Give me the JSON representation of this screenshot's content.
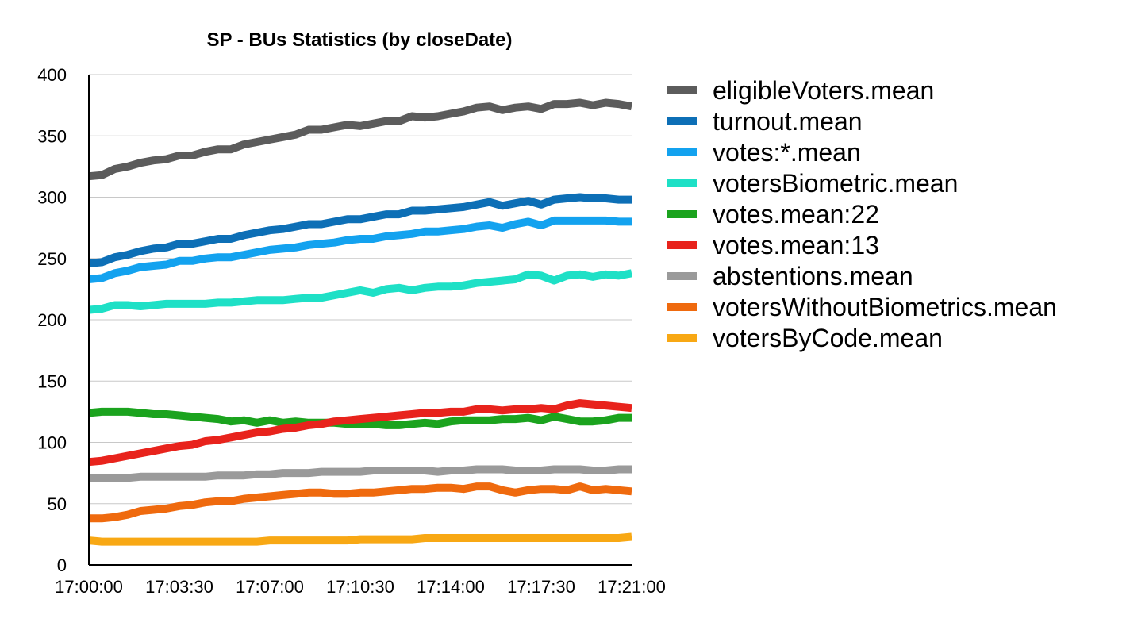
{
  "chart_data": {
    "type": "line",
    "title": "SP - BUs Statistics (by closeDate)",
    "xlabel": "",
    "ylabel": "",
    "ylim": [
      0,
      400
    ],
    "yticks": [
      "400",
      "350",
      "300",
      "250",
      "200",
      "150",
      "100",
      "50",
      "0"
    ],
    "xticks": [
      "17:00:00",
      "17:03:30",
      "17:07:00",
      "17:10:30",
      "17:14:00",
      "17:17:30",
      "17:21:00"
    ],
    "x_start": "17:00:00",
    "x_end": "17:21:00",
    "grid": true,
    "legend_position": "right",
    "series": [
      {
        "name": "eligibleVoters.mean",
        "color": "#5c5c5c",
        "values": [
          317,
          318,
          323,
          325,
          328,
          330,
          331,
          334,
          334,
          337,
          339,
          339,
          343,
          345,
          347,
          349,
          351,
          355,
          355,
          357,
          359,
          358,
          360,
          362,
          362,
          366,
          365,
          366,
          368,
          370,
          373,
          374,
          371,
          373,
          374,
          372,
          376,
          376,
          377,
          375,
          377,
          376,
          374
        ]
      },
      {
        "name": "turnout.mean",
        "color": "#0d6fb6",
        "values": [
          246,
          247,
          251,
          253,
          256,
          258,
          259,
          262,
          262,
          264,
          266,
          266,
          269,
          271,
          273,
          274,
          276,
          278,
          278,
          280,
          282,
          282,
          284,
          286,
          286,
          289,
          289,
          290,
          291,
          292,
          294,
          296,
          293,
          295,
          297,
          294,
          298,
          299,
          300,
          299,
          299,
          298,
          298
        ]
      },
      {
        "name": "votes:*.mean",
        "color": "#13a2ef",
        "values": [
          233,
          234,
          238,
          240,
          243,
          244,
          245,
          248,
          248,
          250,
          251,
          251,
          253,
          255,
          257,
          258,
          259,
          261,
          262,
          263,
          265,
          266,
          266,
          268,
          269,
          270,
          272,
          272,
          273,
          274,
          276,
          277,
          275,
          278,
          280,
          277,
          281,
          281,
          281,
          281,
          281,
          280,
          280
        ]
      },
      {
        "name": "votersBiometric.mean",
        "color": "#1ee0c6",
        "values": [
          208,
          209,
          212,
          212,
          211,
          212,
          213,
          213,
          213,
          213,
          214,
          214,
          215,
          216,
          216,
          216,
          217,
          218,
          218,
          220,
          222,
          224,
          222,
          225,
          226,
          224,
          226,
          227,
          227,
          228,
          230,
          231,
          232,
          233,
          237,
          236,
          232,
          236,
          237,
          235,
          237,
          236,
          238
        ]
      },
      {
        "name": "votes.mean:22",
        "color": "#1ba31e",
        "values": [
          124,
          125,
          125,
          125,
          124,
          123,
          123,
          122,
          121,
          120,
          119,
          117,
          118,
          116,
          118,
          116,
          117,
          116,
          116,
          116,
          115,
          115,
          115,
          114,
          114,
          115,
          116,
          115,
          117,
          118,
          118,
          118,
          119,
          119,
          120,
          118,
          121,
          119,
          117,
          117,
          118,
          120,
          120
        ]
      },
      {
        "name": "votes.mean:13",
        "color": "#e8231c",
        "values": [
          84,
          85,
          87,
          89,
          91,
          93,
          95,
          97,
          98,
          101,
          102,
          104,
          106,
          108,
          109,
          111,
          112,
          114,
          115,
          117,
          118,
          119,
          120,
          121,
          122,
          123,
          124,
          124,
          125,
          125,
          127,
          127,
          126,
          127,
          127,
          128,
          127,
          130,
          132,
          131,
          130,
          129,
          128
        ]
      },
      {
        "name": "abstentions.mean",
        "color": "#9a9a9a",
        "values": [
          71,
          71,
          71,
          71,
          72,
          72,
          72,
          72,
          72,
          72,
          73,
          73,
          73,
          74,
          74,
          75,
          75,
          75,
          76,
          76,
          76,
          76,
          77,
          77,
          77,
          77,
          77,
          76,
          77,
          77,
          78,
          78,
          78,
          77,
          77,
          77,
          78,
          78,
          78,
          77,
          77,
          78,
          78
        ]
      },
      {
        "name": "votersWithoutBiometrics.mean",
        "color": "#ef6a0e",
        "values": [
          38,
          38,
          39,
          41,
          44,
          45,
          46,
          48,
          49,
          51,
          52,
          52,
          54,
          55,
          56,
          57,
          58,
          59,
          59,
          58,
          58,
          59,
          59,
          60,
          61,
          62,
          62,
          63,
          63,
          62,
          64,
          64,
          61,
          59,
          61,
          62,
          62,
          61,
          64,
          61,
          62,
          61,
          60
        ]
      },
      {
        "name": "votersByCode.mean",
        "color": "#f8a814",
        "values": [
          20,
          19,
          19,
          19,
          19,
          19,
          19,
          19,
          19,
          19,
          19,
          19,
          19,
          19,
          20,
          20,
          20,
          20,
          20,
          20,
          20,
          21,
          21,
          21,
          21,
          21,
          22,
          22,
          22,
          22,
          22,
          22,
          22,
          22,
          22,
          22,
          22,
          22,
          22,
          22,
          22,
          22,
          23
        ]
      }
    ]
  }
}
